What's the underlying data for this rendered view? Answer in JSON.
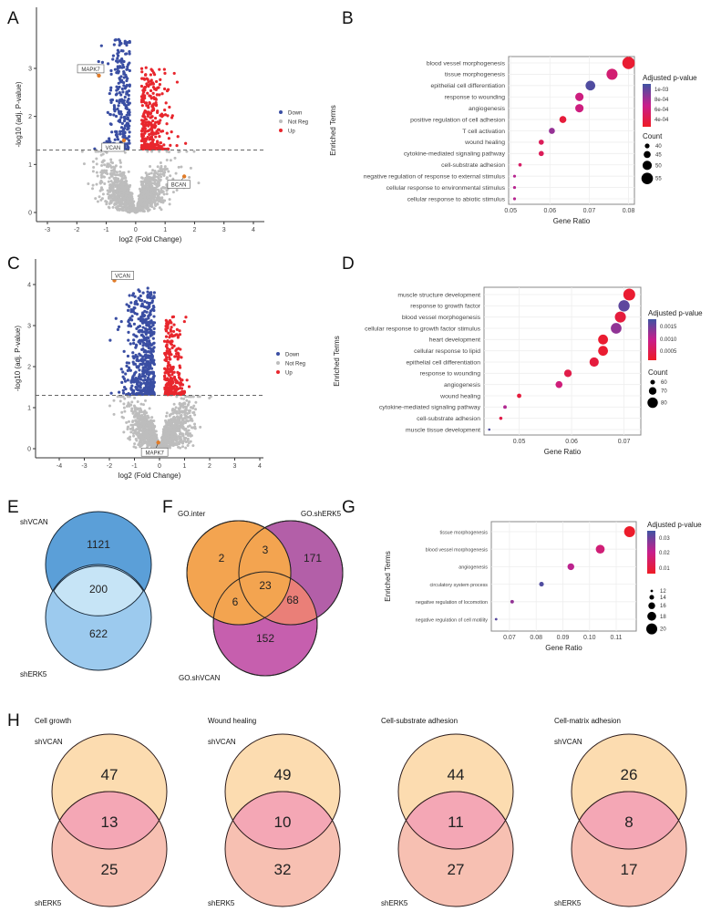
{
  "panels": {
    "A": "A",
    "B": "B",
    "C": "C",
    "D": "D",
    "E": "E",
    "F": "F",
    "G": "G",
    "H": "H"
  },
  "colors": {
    "down": "#3a4ea3",
    "up": "#e8262d",
    "not_reg": "#bdbdbd",
    "highlight": "#e07b28",
    "padj_low": "#ee1c25",
    "padj_mid": "#c81e8c",
    "padj_high": "#3f53a3"
  },
  "chart_data": [
    {
      "id": "A",
      "type": "scatter",
      "xlabel": "log2 (Fold Change)",
      "ylabel": "-log10 (adj. P-value)",
      "xlim": [
        -3.4,
        4.3
      ],
      "ylim": [
        -0.2,
        3.85
      ],
      "xticks": [
        "-3",
        "-2",
        "-1",
        "0",
        "1",
        "2",
        "3",
        "4"
      ],
      "yticks": [
        "0",
        "1",
        "2",
        "3"
      ],
      "threshold": 1.3,
      "grid": false,
      "legend_position": "right",
      "legend": [
        "Down",
        "Not Reg",
        "Up"
      ],
      "labeled_genes": [
        {
          "gene": "MAPK7",
          "x": -1.25,
          "y": 2.85
        },
        {
          "gene": "VCAN",
          "x": -0.4,
          "y": 1.5
        },
        {
          "gene": "BCAN",
          "x": 1.65,
          "y": 0.75
        }
      ]
    },
    {
      "id": "B",
      "type": "scatter",
      "xlabel": "Gene Ratio",
      "ylabel": "Enriched Terms",
      "xticks": [
        "0.05",
        "0.06",
        "0.07",
        "0.08"
      ],
      "xlim": [
        0.0495,
        0.0815
      ],
      "color_legend_title": "Adjusted p-value",
      "color_ticks": [
        "1e-03",
        "8e-04",
        "6e-04",
        "4e-04"
      ],
      "size_legend_title": "Count",
      "size_ticks": [
        "40",
        "45",
        "50",
        "55"
      ],
      "terms": [
        {
          "term": "blood vessel morphogenesis",
          "ratio": 0.08,
          "count": 57,
          "padj": 0.0003
        },
        {
          "term": "tissue morphogenesis",
          "ratio": 0.0758,
          "count": 54,
          "padj": 0.00055
        },
        {
          "term": "epithelial cell differentiation",
          "ratio": 0.0703,
          "count": 51,
          "padj": 0.001
        },
        {
          "term": "response to wounding",
          "ratio": 0.0675,
          "count": 48,
          "padj": 0.0006
        },
        {
          "term": "angiogenesis",
          "ratio": 0.0675,
          "count": 48,
          "padj": 0.0006
        },
        {
          "term": "positive regulation of cell adhesion",
          "ratio": 0.0633,
          "count": 45,
          "padj": 0.00033
        },
        {
          "term": "T cell activation",
          "ratio": 0.0605,
          "count": 43,
          "padj": 0.0008
        },
        {
          "term": "wound healing",
          "ratio": 0.0578,
          "count": 41,
          "padj": 0.00045
        },
        {
          "term": "cytokine-mediated signaling pathway",
          "ratio": 0.0578,
          "count": 41,
          "padj": 0.00045
        },
        {
          "term": "cell-substrate adhesion",
          "ratio": 0.0524,
          "count": 37,
          "padj": 0.0005
        },
        {
          "term": "negative regulation of response to external stimulus",
          "ratio": 0.051,
          "count": 36,
          "padj": 0.0007
        },
        {
          "term": "cellular response to environmental stimulus",
          "ratio": 0.051,
          "count": 36,
          "padj": 0.0007
        },
        {
          "term": "cellular response to abiotic stimulus",
          "ratio": 0.051,
          "count": 36,
          "padj": 0.0007
        }
      ]
    },
    {
      "id": "C",
      "type": "scatter",
      "xlabel": "log2 (Fold Change)",
      "ylabel": "-log10 (adj. P-value)",
      "xlim": [
        -4.7,
        4.3
      ],
      "ylim": [
        -0.2,
        4.35
      ],
      "xticks": [
        "-4",
        "-3",
        "-2",
        "-1",
        "0",
        "1",
        "2",
        "3",
        "4"
      ],
      "yticks": [
        "0",
        "1",
        "2",
        "3",
        "4"
      ],
      "threshold": 1.3,
      "grid": false,
      "legend_position": "right",
      "legend": [
        "Down",
        "Not Reg",
        "Up"
      ],
      "labeled_genes": [
        {
          "gene": "VCAN",
          "x": -1.8,
          "y": 4.1
        },
        {
          "gene": "MAPK7",
          "x": -0.05,
          "y": 0.15
        }
      ]
    },
    {
      "id": "D",
      "type": "scatter",
      "xlabel": "Gene Ratio",
      "ylabel": "Enriched Terms",
      "xticks": [
        "0.05",
        "0.06",
        "0.07"
      ],
      "xlim": [
        0.0433,
        0.0732
      ],
      "color_legend_title": "Adjusted p-value",
      "color_ticks": [
        "0.0015",
        "0.0010",
        "0.0005"
      ],
      "size_legend_title": "Count",
      "size_ticks": [
        "60",
        "70",
        "80"
      ],
      "terms": [
        {
          "term": "muscle structure development",
          "ratio": 0.071,
          "count": 85,
          "padj": 0.0002
        },
        {
          "term": "response to growth factor",
          "ratio": 0.07,
          "count": 83,
          "padj": 0.0016
        },
        {
          "term": "blood vessel morphogenesis",
          "ratio": 0.0693,
          "count": 82,
          "padj": 0.0003
        },
        {
          "term": "cellular response to growth factor stimulus",
          "ratio": 0.0685,
          "count": 81,
          "padj": 0.0013
        },
        {
          "term": "heart development",
          "ratio": 0.066,
          "count": 78,
          "padj": 0.0002
        },
        {
          "term": "cellular response to lipid",
          "ratio": 0.066,
          "count": 78,
          "padj": 0.0002
        },
        {
          "term": "epithelial cell differentiation",
          "ratio": 0.0643,
          "count": 76,
          "padj": 0.0003
        },
        {
          "term": "response to wounding",
          "ratio": 0.0593,
          "count": 70,
          "padj": 0.0004
        },
        {
          "term": "angiogenesis",
          "ratio": 0.0576,
          "count": 68,
          "padj": 0.0008
        },
        {
          "term": "wound healing",
          "ratio": 0.05,
          "count": 59,
          "padj": 0.0003
        },
        {
          "term": "cytokine-mediated signaling pathway",
          "ratio": 0.0473,
          "count": 56,
          "padj": 0.0011
        },
        {
          "term": "cell-substrate adhesion",
          "ratio": 0.0465,
          "count": 55,
          "padj": 0.0004
        },
        {
          "term": "muscle tissue development",
          "ratio": 0.0443,
          "count": 52,
          "padj": 0.0017
        }
      ]
    },
    {
      "id": "G",
      "type": "scatter",
      "xlabel": "Gene Ratio",
      "ylabel": "Enriched Terms",
      "xticks": [
        "0.07",
        "0.08",
        "0.09",
        "0.10",
        "0.11"
      ],
      "xlim": [
        0.0632,
        0.1175
      ],
      "color_legend_title": "Adjusted p-value",
      "color_ticks": [
        "0.03",
        "0.02",
        "0.01"
      ],
      "size_legend_title": "",
      "size_ticks": [
        "12",
        "14",
        "16",
        "18",
        "20"
      ],
      "terms": [
        {
          "term": "tissue morphogenesis",
          "ratio": 0.115,
          "count": 20,
          "padj": 0.003
        },
        {
          "term": "blood vessel morphogenesis",
          "ratio": 0.104,
          "count": 18,
          "padj": 0.015
        },
        {
          "term": "angiogenesis",
          "ratio": 0.093,
          "count": 16,
          "padj": 0.02
        },
        {
          "term": "circulatory system process",
          "ratio": 0.082,
          "count": 14,
          "padj": 0.033
        },
        {
          "term": "negative regulation of locomotion",
          "ratio": 0.071,
          "count": 13,
          "padj": 0.025
        },
        {
          "term": "negative regulation of cell motility",
          "ratio": 0.065,
          "count": 12,
          "padj": 0.032
        }
      ]
    }
  ],
  "venn_E": {
    "set1": "shVCAN",
    "set2": "shERK5",
    "only1": "1121",
    "both": "200",
    "only2": "622"
  },
  "venn_F": {
    "setA": "GO.inter",
    "setB": "GO.shERK5",
    "setC": "GO.shVCAN",
    "a": "2",
    "ab": "3",
    "b": "171",
    "abc": "23",
    "ac": "6",
    "bc": "68",
    "c": "152"
  },
  "venn_H": [
    {
      "title": "Cell growth",
      "set1": "shVCAN",
      "set2": "shERK5",
      "only1": "47",
      "both": "13",
      "only2": "25",
      "show_set1": true
    },
    {
      "title": "Wound healing",
      "set1": "shVCAN",
      "set2": "shERK5",
      "only1": "49",
      "both": "10",
      "only2": "32",
      "show_set1": true
    },
    {
      "title": "Cell-substrate adhesion",
      "set1": "",
      "set2": "shERK5",
      "only1": "44",
      "both": "11",
      "only2": "27",
      "show_set1": false
    },
    {
      "title": "Cell-matrix adhesion",
      "set1": "shVCAN",
      "set2": "shERK5",
      "only1": "26",
      "both": "8",
      "only2": "17",
      "show_set1": true
    }
  ]
}
